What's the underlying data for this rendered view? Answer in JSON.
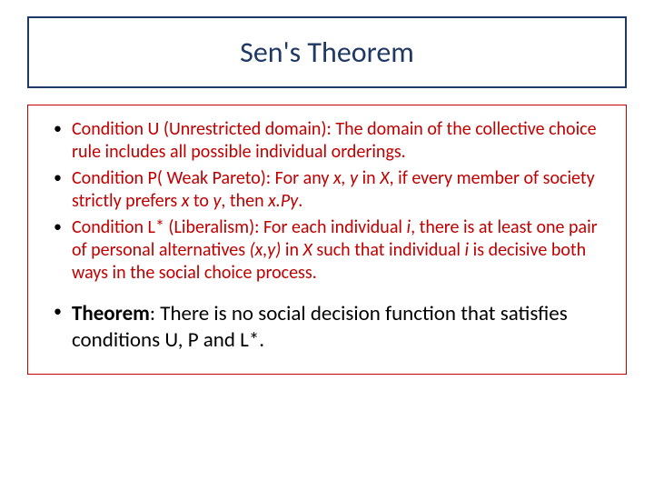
{
  "title": "Sen's Theorem",
  "colors": {
    "title_border": "#1f3864",
    "title_text": "#1f3864",
    "content_border": "#c00000",
    "condition_text": "#c00000",
    "theorem_text": "#000000",
    "background": "#ffffff"
  },
  "typography": {
    "title_fontsize": 32,
    "condition_fontsize": 20,
    "theorem_fontsize": 23,
    "font_family": "Calibri"
  },
  "conditions": [
    {
      "prefix": "Condition U (Unrestricted domain): The domain of the collective choice rule includes all possible individual orderings."
    },
    {
      "prefix": "Condition P( Weak Pareto): For any ",
      "i1": "x, y",
      "m1": " in ",
      "i2": "X",
      "m2": ", if every member of society strictly prefers ",
      "i3": "x",
      "m3": " to ",
      "i4": "y",
      "m4": ", then ",
      "i5": "x.Py",
      "m5": "."
    },
    {
      "prefix": "Condition L* (Liberalism): For each individual ",
      "i1": "i",
      "m1": ", there is at least one pair of personal alternatives ",
      "i2": "(x,y)",
      "m2": " in ",
      "i3": "X",
      "m3": " such that individual ",
      "i4": "i",
      "m4": " is decisive both ways in the social choice process."
    }
  ],
  "theorem": {
    "label": "Theorem",
    "text": ": There is no social decision function that satisfies conditions U, P and L*."
  }
}
